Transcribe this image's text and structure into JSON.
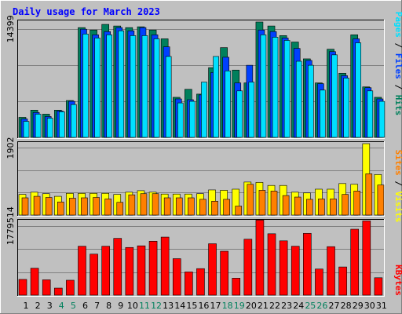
{
  "title": "Daily usage for March 2023",
  "colors": {
    "background": "#c0c0c0",
    "hits": "#00805c",
    "files": "#0040ff",
    "pages": "#00e0ff",
    "visits": "#ffff00",
    "sites": "#ff8000",
    "kbytes": "#ff0000",
    "weekend_label": "#00805c",
    "title": "#0000ff"
  },
  "right_labels": {
    "top": [
      {
        "text": "Pages",
        "color": "#00e0ff"
      },
      {
        "text": " / ",
        "color": "#000000"
      },
      {
        "text": "Files",
        "color": "#0040ff"
      },
      {
        "text": " / ",
        "color": "#000000"
      },
      {
        "text": "Hits",
        "color": "#00805c"
      }
    ],
    "middle": [
      {
        "text": "Sites",
        "color": "#ff8000"
      },
      {
        "text": " / ",
        "color": "#000000"
      },
      {
        "text": "Visits",
        "color": "#ffff00"
      }
    ],
    "bottom": [
      {
        "text": "KBytes",
        "color": "#ff0000"
      }
    ]
  },
  "chart_data": [
    {
      "type": "bar",
      "panel": "hits-files-pages",
      "ymax_label": "14399",
      "ylim": [
        0,
        14399
      ],
      "categories": [
        "1",
        "2",
        "3",
        "4",
        "5",
        "6",
        "7",
        "8",
        "9",
        "10",
        "11",
        "12",
        "13",
        "14",
        "15",
        "16",
        "17",
        "18",
        "19",
        "20",
        "21",
        "22",
        "23",
        "24",
        "25",
        "26",
        "27",
        "28",
        "29",
        "30",
        "31"
      ],
      "weekend_days": [
        "4",
        "5",
        "11",
        "12",
        "18",
        "19",
        "25",
        "26"
      ],
      "series": [
        {
          "name": "Hits",
          "values": [
            2500,
            3400,
            2900,
            3400,
            4600,
            13700,
            13400,
            14100,
            13900,
            13700,
            13800,
            13400,
            12300,
            5000,
            6000,
            5400,
            8700,
            11200,
            8400,
            6800,
            14400,
            13900,
            12700,
            11900,
            9800,
            6800,
            11000,
            8000,
            12800,
            6300,
            5000
          ]
        },
        {
          "name": "Files",
          "values": [
            2300,
            3100,
            2600,
            3300,
            4500,
            13500,
            12800,
            13200,
            13700,
            13300,
            13700,
            12800,
            11300,
            4800,
            4700,
            5300,
            8100,
            10000,
            6800,
            9000,
            13400,
            13200,
            12400,
            11100,
            9600,
            6700,
            10700,
            7700,
            12300,
            6200,
            4800
          ]
        },
        {
          "name": "Pages",
          "values": [
            2000,
            2900,
            2400,
            3200,
            4100,
            12900,
            12400,
            12800,
            13300,
            12700,
            12700,
            12300,
            10100,
            4300,
            4500,
            6900,
            10100,
            8300,
            5800,
            6900,
            12800,
            12500,
            12100,
            9500,
            9000,
            5900,
            10300,
            7400,
            11800,
            5800,
            4500
          ]
        }
      ]
    },
    {
      "type": "bar",
      "panel": "visits-sites",
      "ymax_label": "1902",
      "ylim": [
        0,
        1902
      ],
      "categories": [
        "1",
        "2",
        "3",
        "4",
        "5",
        "6",
        "7",
        "8",
        "9",
        "10",
        "11",
        "12",
        "13",
        "14",
        "15",
        "16",
        "17",
        "18",
        "19",
        "20",
        "21",
        "22",
        "23",
        "24",
        "25",
        "26",
        "27",
        "28",
        "29",
        "30",
        "31"
      ],
      "series": [
        {
          "name": "Visits",
          "values": [
            550,
            610,
            570,
            500,
            580,
            580,
            580,
            580,
            550,
            610,
            650,
            610,
            560,
            560,
            560,
            570,
            670,
            660,
            690,
            880,
            870,
            790,
            790,
            610,
            590,
            690,
            690,
            840,
            820,
            1902,
            1080
          ]
        },
        {
          "name": "Sites",
          "values": [
            460,
            500,
            470,
            350,
            450,
            460,
            470,
            430,
            340,
            540,
            570,
            570,
            460,
            460,
            460,
            420,
            370,
            420,
            240,
            820,
            660,
            640,
            520,
            480,
            420,
            430,
            430,
            550,
            640,
            1100,
            800
          ]
        }
      ]
    },
    {
      "type": "bar",
      "panel": "kbytes",
      "ymax_label": "1779514",
      "ylim": [
        0,
        1779514
      ],
      "categories": [
        "1",
        "2",
        "3",
        "4",
        "5",
        "6",
        "7",
        "8",
        "9",
        "10",
        "11",
        "12",
        "13",
        "14",
        "15",
        "16",
        "17",
        "18",
        "19",
        "20",
        "21",
        "22",
        "23",
        "24",
        "25",
        "26",
        "27",
        "28",
        "29",
        "30",
        "31"
      ],
      "series": [
        {
          "name": "KBytes",
          "values": [
            380000,
            650000,
            370000,
            170000,
            360000,
            1180000,
            990000,
            1180000,
            1370000,
            1150000,
            1190000,
            1300000,
            1400000,
            880000,
            560000,
            640000,
            1240000,
            1060000,
            410000,
            1350000,
            1810000,
            1480000,
            1310000,
            1180000,
            1490000,
            630000,
            1170000,
            680000,
            1590000,
            1790000,
            420000
          ]
        }
      ]
    }
  ]
}
